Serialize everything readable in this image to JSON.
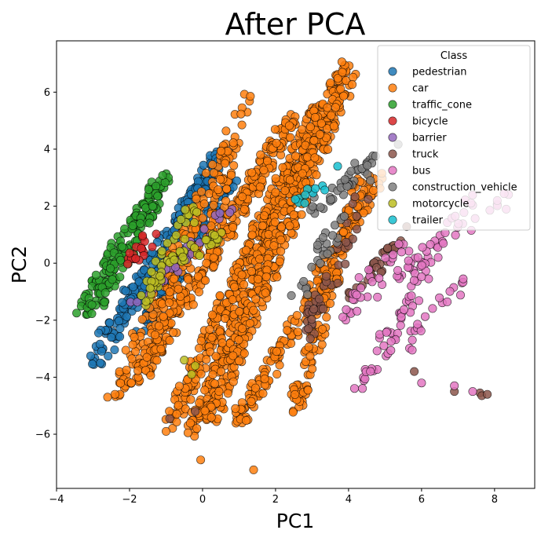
{
  "chart_data": {
    "type": "scatter",
    "title": "After PCA",
    "xlabel": "PC1",
    "ylabel": "PC2",
    "xlim": [
      -4,
      9.1
    ],
    "ylim": [
      -7.9,
      7.8
    ],
    "xticks": [
      -4,
      -2,
      0,
      2,
      4,
      6,
      8
    ],
    "yticks": [
      -6,
      -4,
      -2,
      0,
      2,
      4,
      6
    ],
    "legend": {
      "title": "Class",
      "position": "upper-right"
    },
    "series": [
      {
        "name": "pedestrian",
        "color": "#1f77b4",
        "segments": [
          [
            -2.9,
            -3.5,
            0.5,
            4.0,
            160
          ],
          [
            -2.6,
            -2.4,
            0.3,
            3.2,
            90
          ],
          [
            -1.6,
            -2.2,
            0.8,
            3.0,
            110
          ]
        ],
        "extra_points": [
          [
            -2.8,
            -3.5
          ],
          [
            -2.85,
            -2.45
          ],
          [
            -2.5,
            -2.6
          ],
          [
            0.6,
            3.9
          ],
          [
            0.7,
            3.7
          ]
        ]
      },
      {
        "name": "car",
        "color": "#ff7f0e",
        "segments": [
          [
            -2.4,
            -4.6,
            1.3,
            5.8,
            140
          ],
          [
            -1.8,
            -4.2,
            2.5,
            5.2,
            260
          ],
          [
            -0.9,
            -5.6,
            3.2,
            5.5,
            320
          ],
          [
            -0.3,
            -6.0,
            3.9,
            6.9,
            300
          ],
          [
            0.2,
            -5.5,
            4.0,
            6.5,
            240
          ],
          [
            1.0,
            -5.6,
            4.8,
            3.0,
            180
          ],
          [
            2.5,
            -5.2,
            4.3,
            2.9,
            120
          ],
          [
            -1.2,
            -2.4,
            0.8,
            3.4,
            80
          ]
        ],
        "extra_points": [
          [
            -0.05,
            -6.9
          ],
          [
            1.4,
            -7.25
          ],
          [
            -2.4,
            -4.6
          ],
          [
            -1.0,
            -5.9
          ],
          [
            -0.4,
            -5.95
          ],
          [
            0.9,
            -5.1
          ]
        ]
      },
      {
        "name": "traffic_cone",
        "color": "#2ca02c",
        "segments": [
          [
            -3.4,
            -1.7,
            -1.0,
            3.0,
            120
          ],
          [
            -3.0,
            -1.8,
            -1.3,
            2.2,
            60
          ]
        ],
        "extra_points": [
          [
            -3.45,
            -1.75
          ]
        ]
      },
      {
        "name": "bicycle",
        "color": "#d62728",
        "segments": [
          [
            -1.9,
            0.1,
            -1.2,
            1.2,
            20
          ]
        ],
        "extra_points": []
      },
      {
        "name": "barrier",
        "color": "#9467bd",
        "segments": [
          [
            -1.9,
            -1.4,
            0.8,
            1.9,
            30
          ]
        ],
        "extra_points": []
      },
      {
        "name": "truck",
        "color": "#8c564b",
        "segments": [
          [
            2.8,
            -2.6,
            4.4,
            2.3,
            40
          ],
          [
            4.2,
            -1.2,
            5.6,
            1.4,
            30
          ]
        ],
        "extra_points": [
          [
            -0.9,
            -5.45
          ],
          [
            -0.2,
            -5.2
          ],
          [
            5.8,
            -3.8
          ],
          [
            6.9,
            -4.5
          ],
          [
            7.6,
            -4.55
          ],
          [
            7.65,
            -4.65
          ],
          [
            7.8,
            -4.6
          ],
          [
            2.9,
            -2.3
          ],
          [
            3.3,
            -1.6
          ]
        ]
      },
      {
        "name": "bus",
        "color": "#e377c2",
        "segments": [
          [
            3.7,
            -2.0,
            8.6,
            2.5,
            45
          ],
          [
            4.2,
            -4.7,
            7.3,
            2.5,
            40
          ],
          [
            5.0,
            -3.2,
            6.2,
            0.6,
            20
          ],
          [
            5.5,
            -3.0,
            7.3,
            -0.4,
            20
          ],
          [
            3.8,
            -1.5,
            5.8,
            1.0,
            20
          ]
        ],
        "extra_points": [
          [
            6.9,
            -4.3
          ],
          [
            7.4,
            -4.5
          ],
          [
            6.0,
            -4.2
          ],
          [
            4.6,
            -3.8
          ]
        ]
      },
      {
        "name": "construction_vehicle",
        "color": "#7f7f7f",
        "segments": [
          [
            2.8,
            1.6,
            5.2,
            4.2,
            40
          ],
          [
            2.6,
            -1.4,
            3.8,
            1.8,
            25
          ]
        ],
        "extra_points": [
          [
            3.3,
            0.9
          ],
          [
            4.6,
            2.9
          ]
        ]
      },
      {
        "name": "motorcycle",
        "color": "#bcbd22",
        "segments": [
          [
            -1.7,
            -1.6,
            -0.2,
            2.1,
            40
          ],
          [
            -1.0,
            0.0,
            0.4,
            0.9,
            25
          ]
        ],
        "extra_points": [
          [
            -0.2,
            -3.6
          ],
          [
            -0.5,
            -3.4
          ],
          [
            -0.3,
            -3.9
          ]
        ]
      },
      {
        "name": "trailer",
        "color": "#17becf",
        "segments": [
          [
            2.4,
            2.0,
            3.5,
            2.9,
            10
          ]
        ],
        "extra_points": [
          [
            3.7,
            3.4
          ]
        ]
      }
    ]
  }
}
